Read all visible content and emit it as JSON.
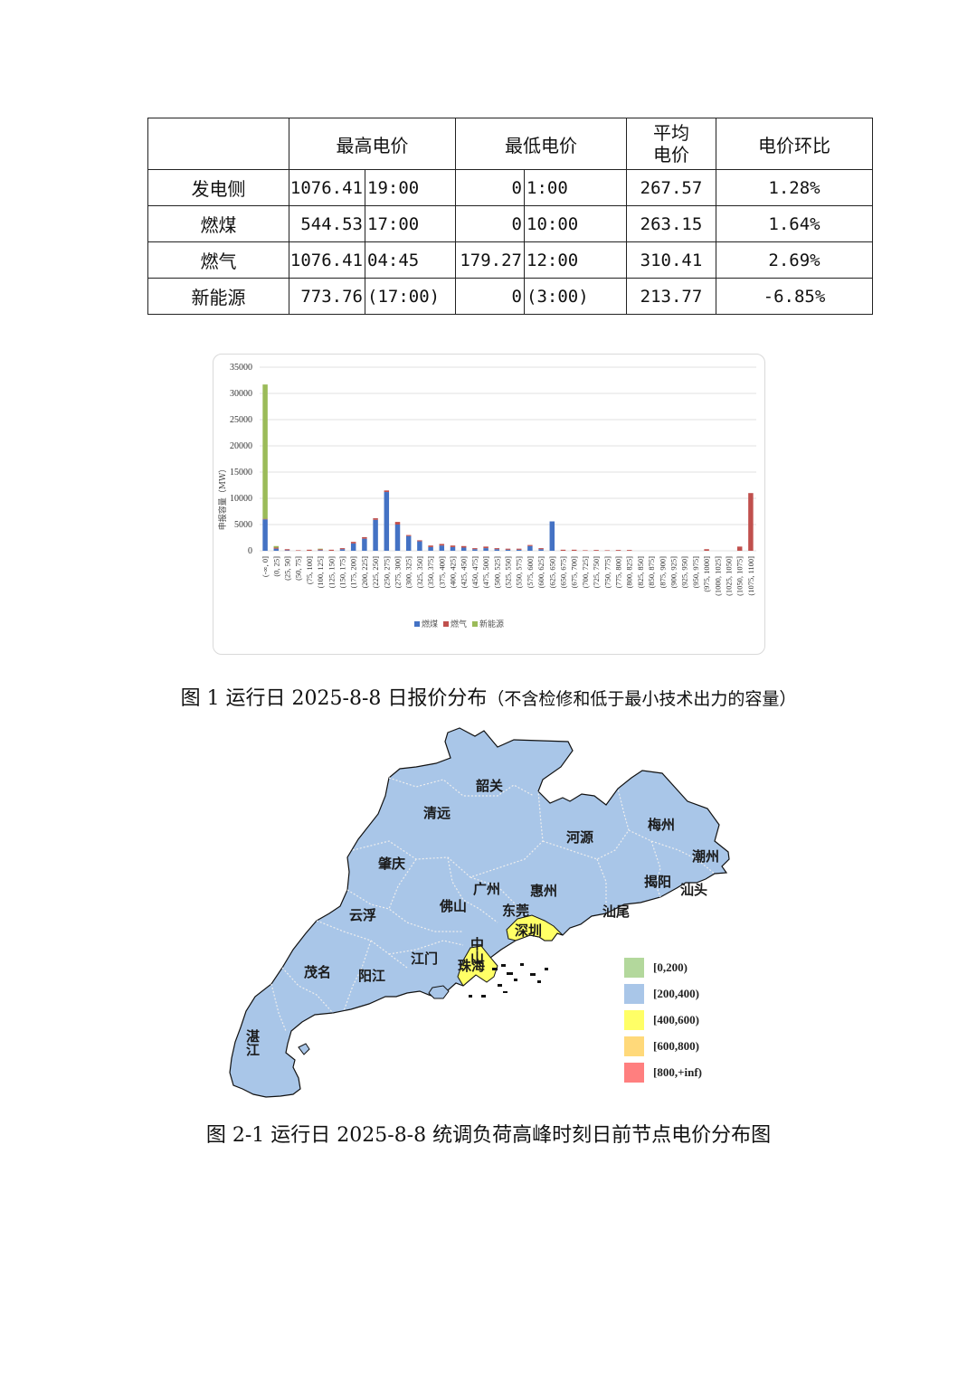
{
  "table": {
    "header": {
      "empty": "",
      "max_price": "最高电价",
      "min_price": "最低电价",
      "avg_price_line1": "平均",
      "avg_price_line2": "电价",
      "ratio": "电价环比"
    },
    "rows": [
      {
        "name": "发电侧",
        "max_value": "1076.41",
        "max_time": "19:00",
        "min_value": "0",
        "min_time": "1:00",
        "avg": "267.57",
        "ratio": "1.28%"
      },
      {
        "name": "燃煤",
        "max_value": "544.53",
        "max_time": "17:00",
        "min_value": "0",
        "min_time": "10:00",
        "avg": "263.15",
        "ratio": "1.64%"
      },
      {
        "name": "燃气",
        "max_value": "1076.41",
        "max_time": "04:45",
        "min_value": "179.27",
        "min_time": "12:00",
        "avg": "310.41",
        "ratio": "2.69%"
      },
      {
        "name": "新能源",
        "max_value": "773.76",
        "max_time": "(17:00)",
        "min_value": "0",
        "min_time": "(3:00)",
        "avg": "213.77",
        "ratio": "-6.85%"
      }
    ]
  },
  "chart_data": {
    "type": "bar",
    "stacked": true,
    "ylabel": "申报容量（MW）",
    "ylim": [
      0,
      35000
    ],
    "yticks": [
      0,
      5000,
      10000,
      15000,
      20000,
      25000,
      30000,
      35000
    ],
    "grid": true,
    "legend_position": "bottom",
    "categories": [
      "(-∞, 0]",
      "(0, 25]",
      "(25, 50]",
      "(50, 75]",
      "(75, 100]",
      "(100, 125]",
      "(125, 150]",
      "(150, 175]",
      "(175, 200]",
      "(200, 225]",
      "(225, 250]",
      "(250, 275]",
      "(275, 300]",
      "(300, 325]",
      "(325, 350]",
      "(350, 375]",
      "(375, 400]",
      "(400, 425]",
      "(425, 450]",
      "(450, 475]",
      "(475, 500]",
      "(500, 525]",
      "(525, 550]",
      "(550, 575]",
      "(575, 600]",
      "(600, 625]",
      "(625, 650]",
      "(650, 675]",
      "(675, 700]",
      "(700, 725]",
      "(725, 750]",
      "(750, 775]",
      "(775, 800]",
      "(800, 825]",
      "(825, 850]",
      "(850, 875]",
      "(875, 900]",
      "(900, 925]",
      "(925, 950]",
      "(950, 975]",
      "(975, 1000]",
      "(1000, 1025]",
      "(1025, 1050]",
      "(1050, 1075]",
      "(1075, 1100]"
    ],
    "series": [
      {
        "name": "燃煤",
        "color": "#4472c4",
        "values": [
          6000,
          400,
          100,
          0,
          0,
          100,
          0,
          300,
          1400,
          2300,
          5900,
          11200,
          5000,
          2800,
          1800,
          700,
          1000,
          700,
          600,
          300,
          500,
          300,
          200,
          200,
          900,
          300,
          5600,
          0,
          0,
          0,
          0,
          0,
          0,
          0,
          0,
          0,
          0,
          0,
          0,
          0,
          0,
          0,
          0,
          0,
          0
        ]
      },
      {
        "name": "燃气",
        "color": "#c0504d",
        "values": [
          100,
          200,
          200,
          100,
          200,
          200,
          200,
          200,
          300,
          300,
          300,
          300,
          500,
          200,
          200,
          300,
          300,
          300,
          300,
          200,
          300,
          200,
          200,
          200,
          200,
          200,
          0,
          200,
          200,
          100,
          150,
          100,
          150,
          150,
          0,
          0,
          0,
          0,
          0,
          0,
          300,
          0,
          0,
          800,
          11000
        ]
      },
      {
        "name": "新能源",
        "color": "#9bbb59",
        "values": [
          25600,
          300,
          0,
          0,
          0,
          100,
          0,
          0,
          0,
          0,
          0,
          0,
          0,
          0,
          0,
          0,
          0,
          0,
          0,
          0,
          0,
          0,
          0,
          0,
          0,
          0,
          0,
          0,
          0,
          0,
          0,
          0,
          0,
          0,
          0,
          0,
          0,
          0,
          0,
          0,
          0,
          0,
          0,
          0,
          0
        ]
      }
    ]
  },
  "caption1": {
    "main": "图 1 运行日 2025-8-8 日报价分布",
    "note": "（不含检修和低于最小技术出力的容量）"
  },
  "map": {
    "cities": [
      "韶关",
      "清远",
      "河源",
      "梅州",
      "潮州",
      "肇庆",
      "广州",
      "惠州",
      "揭阳",
      "汕头",
      "佛山",
      "东莞",
      "云浮",
      "深圳",
      "中山",
      "汕尾",
      "江门",
      "珠海",
      "茂名",
      "阳江",
      "湛江"
    ],
    "colors": {
      "base": "#a9c6e8",
      "yellow": "#ffff66"
    },
    "legend": [
      {
        "label": "[0,200)",
        "color": "#b3d89c"
      },
      {
        "label": "[200,400)",
        "color": "#a9c6e8"
      },
      {
        "label": "[400,600)",
        "color": "#ffff66"
      },
      {
        "label": "[600,800)",
        "color": "#ffd97a"
      },
      {
        "label": "[800,+inf)",
        "color": "#ff7f7f"
      }
    ]
  },
  "caption2": "图 2-1 运行日 2025-8-8 统调负荷高峰时刻日前节点电价分布图"
}
